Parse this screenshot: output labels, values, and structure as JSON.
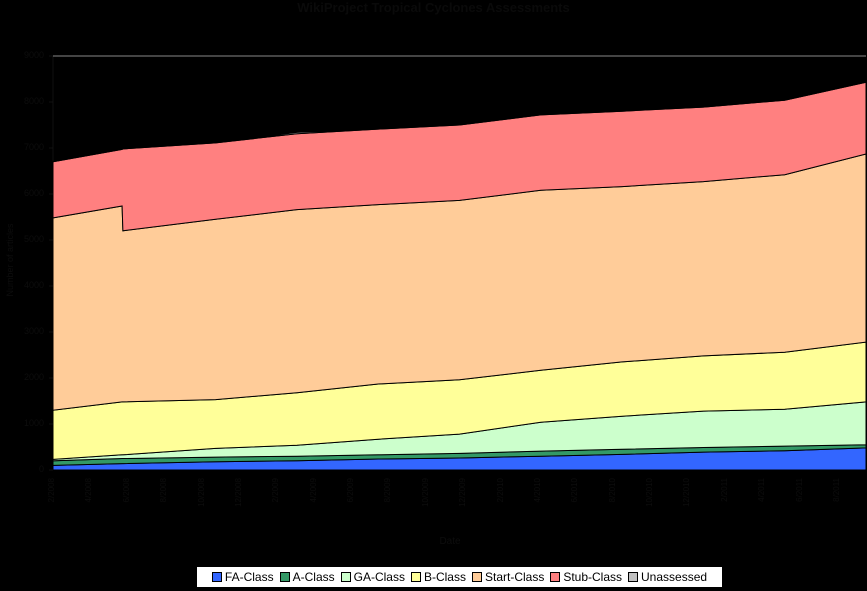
{
  "title": "WikiProject Tropical Cyclones Assessments",
  "chart_data": {
    "type": "area",
    "stacked": true,
    "title": "WikiProject Tropical Cyclones Assessments",
    "xlabel": "Date",
    "ylabel": "Number of articles",
    "ylim": [
      0,
      9000
    ],
    "yticks": [
      0,
      1000,
      2000,
      3000,
      4000,
      5000,
      6000,
      7000,
      8000,
      9000
    ],
    "x_tick_labels": [
      "2/2008",
      "4/2008",
      "6/2008",
      "8/2008",
      "10/2008",
      "12/2008",
      "2/2009",
      "4/2009",
      "6/2009",
      "8/2009",
      "10/2009",
      "12/2009",
      "2/2010",
      "4/2010",
      "6/2010",
      "8/2010",
      "10/2010",
      "12/2010",
      "2/2011",
      "4/2011",
      "6/2011",
      "8/2011"
    ],
    "legend_position": "bottom",
    "grid": false,
    "x": [
      0,
      0.085,
      0.086,
      0.2,
      0.3,
      0.4,
      0.5,
      0.6,
      0.7,
      0.8,
      0.9,
      1.0
    ],
    "series": [
      {
        "name": "FA-Class",
        "color": "#3366FF",
        "values": [
          100,
          140,
          140,
          180,
          200,
          240,
          260,
          300,
          340,
          390,
          420,
          480
        ]
      },
      {
        "name": "A-Class",
        "color": "#339966",
        "values": [
          100,
          110,
          110,
          100,
          100,
          90,
          100,
          110,
          110,
          100,
          100,
          70
        ]
      },
      {
        "name": "GA-Class",
        "color": "#CCFFCC",
        "values": [
          30,
          80,
          80,
          190,
          240,
          340,
          420,
          630,
          720,
          790,
          800,
          930
        ]
      },
      {
        "name": "B-Class",
        "color": "#FFFF99",
        "values": [
          1070,
          1150,
          1150,
          1060,
          1140,
          1200,
          1180,
          1130,
          1180,
          1200,
          1240,
          1300
        ]
      },
      {
        "name": "Start-Class",
        "color": "#FFCC99",
        "values": [
          4180,
          4260,
          3720,
          3920,
          3980,
          3900,
          3900,
          3910,
          3810,
          3790,
          3860,
          4090
        ]
      },
      {
        "name": "Stub-Class",
        "color": "#FF8080",
        "values": [
          1220,
          1230,
          1780,
          1660,
          1650,
          1640,
          1640,
          1640,
          1640,
          1620,
          1620,
          1560
        ]
      },
      {
        "name": "Unassessed",
        "color": "#C0C0C0",
        "values": [
          0,
          0,
          0,
          0,
          30,
          0,
          0,
          0,
          0,
          0,
          0,
          0
        ]
      }
    ]
  },
  "legend": {
    "items": [
      {
        "label": "FA-Class",
        "color": "#3366FF"
      },
      {
        "label": "A-Class",
        "color": "#339966"
      },
      {
        "label": "GA-Class",
        "color": "#CCFFCC"
      },
      {
        "label": "B-Class",
        "color": "#FFFF99"
      },
      {
        "label": "Start-Class",
        "color": "#FFCC99"
      },
      {
        "label": "Stub-Class",
        "color": "#FF8080"
      },
      {
        "label": "Unassessed",
        "color": "#C0C0C0"
      }
    ]
  },
  "axes": {
    "xlabel": "Date",
    "ylabel": "Number of articles"
  }
}
